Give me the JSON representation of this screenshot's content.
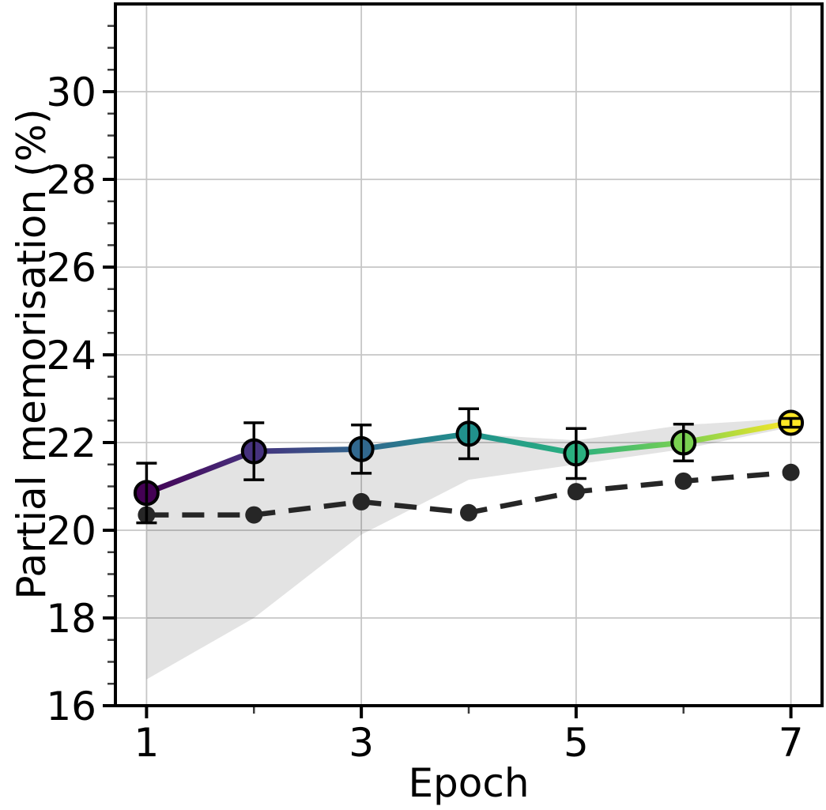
{
  "figure": {
    "background": "#ffffff"
  },
  "chart_data": {
    "type": "line",
    "title": "",
    "xlabel": "Epoch",
    "ylabel": "Partial memorisation (%)",
    "x": [
      1,
      2,
      3,
      4,
      5,
      6,
      7
    ],
    "xlim": [
      0.71,
      7.29
    ],
    "ylim": [
      16,
      32
    ],
    "xticks_major": [
      1,
      3,
      5,
      7
    ],
    "xticks_minor": [
      2,
      4,
      6
    ],
    "yticks_major": [
      16,
      18,
      20,
      22,
      24,
      26,
      28,
      30
    ],
    "yticks_minor_step": 0.5,
    "grid": {
      "show": true,
      "color": "#c6c6c6"
    },
    "legend": "none",
    "series": [
      {
        "name": "memorisation-per-epoch",
        "style": "solid line, circular markers, black error bars, viridis colour per epoch",
        "values": [
          20.85,
          21.8,
          21.85,
          22.2,
          21.75,
          22.0,
          22.45
        ],
        "errors": [
          0.68,
          0.65,
          0.55,
          0.57,
          0.57,
          0.42,
          0.1
        ],
        "point_colors": [
          "#440154",
          "#46327e",
          "#31688e",
          "#21918c",
          "#2ab07f",
          "#7ad151",
          "#fde725"
        ],
        "marker": "circle",
        "marker_edge_color": "#000000"
      },
      {
        "name": "baseline-dashed",
        "style": "dashed line with small dot markers",
        "values": [
          20.35,
          20.35,
          20.65,
          20.4,
          20.88,
          21.12,
          21.32
        ],
        "color": "#262626",
        "marker": "dot"
      }
    ],
    "band": {
      "name": "shaded-uncertainty-band",
      "upper": [
        20.85,
        21.8,
        21.9,
        22.2,
        22.05,
        22.4,
        22.55
      ],
      "lower": [
        16.6,
        18.0,
        19.9,
        21.15,
        21.5,
        21.85,
        22.35
      ],
      "fill": "rgba(0,0,0,0.11)"
    }
  }
}
